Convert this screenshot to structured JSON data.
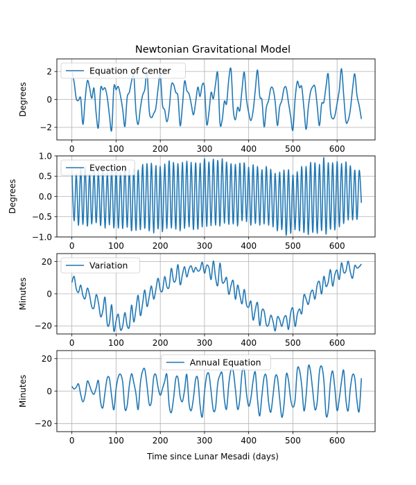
{
  "chart_data": {
    "title": "Newtonian Gravitational Model",
    "xlabel": "Time since Lunar Mesadi (days)",
    "x_ticks": [
      0,
      100,
      200,
      300,
      400,
      500,
      600
    ],
    "x_range": [
      -34,
      686
    ],
    "grid": true,
    "series_color": "#1f77b4",
    "panels": [
      {
        "type": "line",
        "series_name": "Equation of Center",
        "ylabel": "Degrees",
        "ylim": [
          -2.9,
          2.9
        ],
        "y_ticks": [
          2,
          0,
          -2
        ],
        "y_tick_labels": [
          "2",
          "0",
          "−2"
        ],
        "legend": "upper-left",
        "x": [
          0,
          5,
          10,
          15,
          20,
          25,
          30,
          35,
          40,
          45,
          50,
          55,
          60,
          65,
          70,
          75,
          80,
          85,
          90,
          95,
          100,
          105,
          110,
          115,
          120,
          125,
          130,
          135,
          140,
          145,
          150,
          155,
          160,
          165,
          170,
          175,
          180,
          185,
          190,
          195,
          200,
          205,
          210,
          215,
          220,
          225,
          230,
          235,
          240,
          245,
          250,
          255,
          260,
          265,
          270,
          275,
          280,
          285,
          290,
          295,
          300,
          305,
          310,
          315,
          320,
          325,
          330,
          335,
          340,
          345,
          350,
          355,
          360,
          365,
          370,
          375,
          380,
          385,
          390,
          395,
          400,
          405,
          410,
          415,
          420,
          425,
          430,
          435,
          440,
          445,
          450,
          455,
          460,
          465,
          470,
          475,
          480,
          485,
          490,
          495,
          500,
          505,
          510,
          515,
          520,
          525,
          530,
          535,
          540,
          545,
          550,
          555,
          560,
          565,
          570,
          575,
          580,
          585,
          590,
          595,
          600,
          605,
          610,
          615,
          620,
          625,
          630,
          635,
          640,
          645,
          650,
          655
        ],
        "y": [
          2.05,
          1.24,
          0.05,
          -0.07,
          0.08,
          -1.79,
          0.01,
          1.34,
          0.85,
          0.08,
          0.8,
          -1.03,
          -2.0,
          0.76,
          0.68,
          0.82,
          0.16,
          -1.14,
          -2.2,
          0.88,
          0.7,
          0.92,
          0.25,
          -0.73,
          -1.93,
          0.12,
          0.51,
          1.31,
          1.8,
          -0.89,
          -1.79,
          -0.61,
          0.3,
          0.72,
          2.0,
          -0.81,
          -1.3,
          -1.01,
          -0.61,
          0.77,
          1.76,
          -0.39,
          -0.76,
          -1.6,
          -0.76,
          1.0,
          1.07,
          0.51,
          0.21,
          -1.88,
          -0.5,
          1.31,
          0.63,
          0.4,
          -0.32,
          -1.1,
          -0.2,
          0.88,
          0.21,
          1.05,
          0.85,
          -1.77,
          -0.96,
          0.5,
          0.05,
          1.09,
          1.85,
          -1.67,
          -1.49,
          -0.14,
          -0.3,
          1.45,
          2.15,
          -0.67,
          -1.46,
          -0.57,
          -0.79,
          0.73,
          1.95,
          0.03,
          -0.95,
          -1.51,
          -0.83,
          0.68,
          2.1,
          0.23,
          -0.06,
          -1.96,
          -0.57,
          -0.08,
          0.8,
          0.75,
          -0.18,
          -1.87,
          -0.54,
          -0.08,
          0.78,
          0.82,
          -0.21,
          -1.21,
          -2.2,
          0.02,
          1.28,
          0.84,
          0.9,
          -0.63,
          -2.14,
          -0.55,
          0.55,
          0.91,
          0.9,
          -0.44,
          -1.88,
          -0.33,
          -0.2,
          0.92,
          1.8,
          -0.81,
          -1.38,
          -1.16,
          -0.29,
          0.67,
          2.2,
          0.28,
          -1.57,
          -1.5,
          -0.73,
          0.74,
          1.83,
          0.29,
          -0.44,
          -1.4
        ],
        "band": 0
      },
      {
        "type": "line",
        "series_name": "Evection",
        "ylabel": "Degrees",
        "ylim": [
          -1.0,
          1.0
        ],
        "y_ticks": [
          1.0,
          0.5,
          0.0,
          -0.5,
          -1.0
        ],
        "y_tick_labels": [
          "1.0",
          "0.5",
          "0.0",
          "−0.5",
          "−1.0"
        ],
        "legend": "upper-left",
        "x": [
          0,
          5,
          10,
          15,
          20,
          25,
          30,
          35,
          40,
          45,
          50,
          55,
          60,
          65,
          70,
          75,
          80,
          85,
          90,
          95,
          100,
          105,
          110,
          115,
          120,
          125,
          130,
          135,
          140,
          145,
          150,
          155,
          160,
          165,
          170,
          175,
          180,
          185,
          190,
          195,
          200,
          205,
          210,
          215,
          220,
          225,
          230,
          235,
          240,
          245,
          250,
          255,
          260,
          265,
          270,
          275,
          280,
          285,
          290,
          295,
          300,
          305,
          310,
          315,
          320,
          325,
          330,
          335,
          340,
          345,
          350,
          355,
          360,
          365,
          370,
          375,
          380,
          385,
          390,
          395,
          400,
          405,
          410,
          415,
          420,
          425,
          430,
          435,
          440,
          445,
          450,
          455,
          460,
          465,
          470,
          475,
          480,
          485,
          490,
          495,
          500,
          505,
          510,
          515,
          520,
          525,
          530,
          535,
          540,
          545,
          550,
          555,
          560,
          565,
          570,
          575,
          580,
          585,
          590,
          595,
          600,
          605,
          610,
          615,
          620,
          625,
          630,
          635,
          640,
          645,
          650,
          655
        ],
        "y": [
          0.65,
          -0.6,
          0.56,
          -0.71,
          0.68,
          -0.69,
          0.73,
          -0.73,
          0.57,
          -0.68,
          0.61,
          -0.65,
          0.62,
          -0.72,
          0.64,
          -0.78,
          0.58,
          -0.7,
          0.66,
          -0.78,
          0.67,
          -0.78,
          0.59,
          -0.79,
          0.75,
          -0.76,
          0.66,
          -0.85,
          0.68,
          -0.84,
          0.65,
          -0.82,
          0.79,
          -0.79,
          0.81,
          -0.85,
          0.82,
          -0.9,
          0.76,
          -0.8,
          0.74,
          -0.87,
          0.8,
          -0.79,
          0.88,
          -0.78,
          0.84,
          -0.81,
          0.81,
          -0.85,
          0.84,
          -0.79,
          0.87,
          -0.75,
          0.84,
          -0.82,
          0.83,
          -0.81,
          0.82,
          -0.75,
          0.93,
          -0.74,
          0.85,
          -0.72,
          0.92,
          -0.71,
          0.89,
          -0.73,
          0.93,
          -0.66,
          0.85,
          -0.69,
          0.81,
          -0.68,
          0.79,
          -0.73,
          0.82,
          -0.6,
          0.83,
          -0.62,
          0.72,
          -0.71,
          0.78,
          -0.67,
          0.74,
          -0.71,
          0.66,
          -0.68,
          0.74,
          -0.71,
          0.67,
          -0.75,
          0.57,
          -0.85,
          0.6,
          -0.82,
          0.65,
          -0.96,
          0.66,
          -0.91,
          0.53,
          -0.82,
          0.61,
          -0.85,
          0.74,
          -0.89,
          0.74,
          -0.94,
          0.84,
          -0.89,
          0.83,
          -0.91,
          0.79,
          -0.84,
          0.96,
          -0.93,
          0.83,
          -0.81,
          0.83,
          -0.83,
          0.86,
          -0.75,
          0.81,
          -0.67,
          0.85,
          -0.58,
          0.76,
          -0.58,
          0.65,
          -0.57,
          0.64,
          -0.16
        ],
        "band": 0
      },
      {
        "type": "line",
        "series_name": "Variation",
        "ylabel": "Minutes",
        "ylim": [
          -25,
          25
        ],
        "y_ticks": [
          20,
          0,
          -20
        ],
        "y_tick_labels": [
          "20",
          "0",
          "−20"
        ],
        "legend": "upper-left",
        "x": [
          0,
          5,
          10,
          15,
          20,
          25,
          30,
          35,
          40,
          45,
          50,
          55,
          60,
          65,
          70,
          75,
          80,
          85,
          90,
          95,
          100,
          105,
          110,
          115,
          120,
          125,
          130,
          135,
          140,
          145,
          150,
          155,
          160,
          165,
          170,
          175,
          180,
          185,
          190,
          195,
          200,
          205,
          210,
          215,
          220,
          225,
          230,
          235,
          240,
          245,
          250,
          255,
          260,
          265,
          270,
          275,
          280,
          285,
          290,
          295,
          300,
          305,
          310,
          315,
          320,
          325,
          330,
          335,
          340,
          345,
          350,
          355,
          360,
          365,
          370,
          375,
          380,
          385,
          390,
          395,
          400,
          405,
          410,
          415,
          420,
          425,
          430,
          435,
          440,
          445,
          450,
          455,
          460,
          465,
          470,
          475,
          480,
          485,
          490,
          495,
          500,
          505,
          510,
          515,
          520,
          525,
          530,
          535,
          540,
          545,
          550,
          555,
          560,
          565,
          570,
          575,
          580,
          585,
          590,
          595,
          600,
          605,
          610,
          615,
          620,
          625,
          630,
          635,
          640,
          645,
          650,
          655
        ],
        "y": [
          7.0,
          10.8,
          3.0,
          0.9,
          5.4,
          -1.1,
          -3.0,
          3.5,
          -0.8,
          -8.1,
          -8.6,
          -0.6,
          -5.4,
          -14.2,
          -10.6,
          -2.2,
          -18.7,
          -18.3,
          -6.9,
          -23.2,
          -16.9,
          -12.8,
          -22.4,
          -20.0,
          -11.7,
          -19.7,
          -20.5,
          -7.1,
          -17.5,
          -9.5,
          -1.0,
          -13.5,
          -6.1,
          2.3,
          -7.9,
          -1.8,
          4.8,
          -3.3,
          2.6,
          9.7,
          2.5,
          1.9,
          10.7,
          4.3,
          4.4,
          15.8,
          8.0,
          8.7,
          18.1,
          5.7,
          11.8,
          16.8,
          10.5,
          15.4,
          17.3,
          13.4,
          16.4,
          14.2,
          15.0,
          19.6,
          12.8,
          17.7,
          16.3,
          8.9,
          20.4,
          10.2,
          5.2,
          19.1,
          7.5,
          7.4,
          10.0,
          -0.3,
          5.1,
          8.1,
          -3.4,
          5.4,
          -0.8,
          -6.2,
          2.7,
          -6.7,
          -8.3,
          -4.7,
          -16.3,
          -9.9,
          -5.7,
          -19.8,
          -10.4,
          -10.9,
          -19.4,
          -19.2,
          -13.4,
          -17.1,
          -23.1,
          -14.5,
          -16.1,
          -20.3,
          -15.0,
          -14.1,
          -22.2,
          -12.0,
          -9.1,
          -20.3,
          -12.7,
          -9.4,
          -12.3,
          -0.8,
          -3.3,
          -6.6,
          0.2,
          2.1,
          -3.3,
          5.6,
          7.5,
          -0.1,
          10.8,
          4.6,
          7.3,
          15.0,
          4.8,
          12.0,
          14.7,
          8.9,
          19.2,
          13.3,
          14.1,
          20.3,
          13.6,
          9.7,
          17.5,
          16.0,
          16.8,
          18.5
        ],
        "band": 7
      },
      {
        "type": "line",
        "series_name": "Annual Equation",
        "ylabel": "Minutes",
        "ylim": [
          -25,
          25
        ],
        "y_ticks": [
          20,
          0,
          -20
        ],
        "y_tick_labels": [
          "20",
          "0",
          "−20"
        ],
        "legend": "upper-center",
        "x": [
          0,
          5,
          10,
          15,
          20,
          25,
          30,
          35,
          40,
          45,
          50,
          55,
          60,
          65,
          70,
          75,
          80,
          85,
          90,
          95,
          100,
          105,
          110,
          115,
          120,
          125,
          130,
          135,
          140,
          145,
          150,
          155,
          160,
          165,
          170,
          175,
          180,
          185,
          190,
          195,
          200,
          205,
          210,
          215,
          220,
          225,
          230,
          235,
          240,
          245,
          250,
          255,
          260,
          265,
          270,
          275,
          280,
          285,
          290,
          295,
          300,
          305,
          310,
          315,
          320,
          325,
          330,
          335,
          340,
          345,
          350,
          355,
          360,
          365,
          370,
          375,
          380,
          385,
          390,
          395,
          400,
          405,
          410,
          415,
          420,
          425,
          430,
          435,
          440,
          445,
          450,
          455,
          460,
          465,
          470,
          475,
          480,
          485,
          490,
          495,
          500,
          505,
          510,
          515,
          520,
          525,
          530,
          535,
          540,
          545,
          550,
          555,
          560,
          565,
          570,
          575,
          580,
          585,
          590,
          595,
          600,
          605,
          610,
          615,
          620,
          625,
          630,
          635,
          640,
          645,
          650,
          655
        ],
        "y": [
          3.0,
          1.3,
          2.4,
          4.4,
          -2.1,
          -6.6,
          -2.4,
          6.1,
          3.5,
          -0.3,
          -1.9,
          1.9,
          6.4,
          -6.7,
          -10.2,
          -0.7,
          8.1,
          7.6,
          -3.2,
          -11.5,
          1.5,
          8.7,
          10.4,
          5.4,
          -10.9,
          -9.0,
          3.5,
          10.7,
          5.3,
          -1.7,
          -11.3,
          5.0,
          12.4,
          13.4,
          3.5,
          -8.1,
          -6.3,
          8.3,
          10.0,
          2.3,
          -2.5,
          1.5,
          6.1,
          10.1,
          -8.4,
          -13.2,
          -4.7,
          7.6,
          8.1,
          -3.3,
          -6.4,
          0.7,
          10.3,
          -7.5,
          -12.0,
          -4.3,
          7.4,
          7.4,
          -8.6,
          -15.9,
          -0.7,
          9.5,
          10.5,
          -0.3,
          -11.7,
          -10.4,
          4.8,
          9.8,
          10.8,
          -5.0,
          -11.0,
          4.3,
          13.2,
          12.4,
          1.0,
          -11.2,
          -4.9,
          11.6,
          12.9,
          -1.4,
          -9.3,
          -4.4,
          6.4,
          11.6,
          -5.2,
          -15.3,
          -2.5,
          8.8,
          8.8,
          -6.6,
          -13.0,
          -2.9,
          8.7,
          8.4,
          -4.4,
          -16.1,
          -8.2,
          10.2,
          6.7,
          -5.1,
          -9.9,
          -5.4,
          13.4,
          12.9,
          3.4,
          -12.1,
          -2.7,
          15.2,
          12.0,
          0.0,
          -11.3,
          -6.7,
          11.7,
          15.3,
          6.8,
          -14.6,
          -11.8,
          5.8,
          12.3,
          1.5,
          -12.0,
          -4.6,
          5.9,
          12.7,
          -5.3,
          -12.1,
          1.7,
          10.0,
          8.0,
          -6.0,
          -12.4,
          8.0
        ],
        "band": 8
      }
    ]
  }
}
